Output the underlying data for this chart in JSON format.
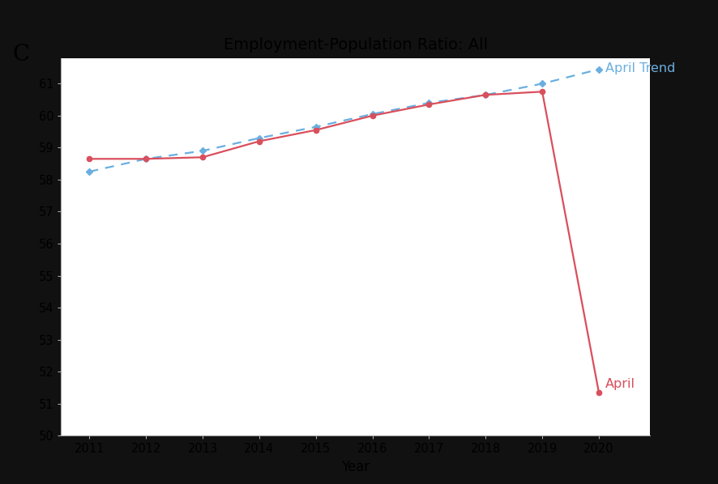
{
  "title": "Employment-Population Ratio: All",
  "panel_label": "C",
  "xlabel": "Year",
  "xlim": [
    2010.5,
    2020.9
  ],
  "ylim": [
    50,
    61.8
  ],
  "yticks": [
    50,
    51,
    52,
    53,
    54,
    55,
    56,
    57,
    58,
    59,
    60,
    61
  ],
  "xticks": [
    2011,
    2012,
    2013,
    2014,
    2015,
    2016,
    2017,
    2018,
    2019,
    2020
  ],
  "april_years": [
    2011,
    2012,
    2013,
    2014,
    2015,
    2016,
    2017,
    2018,
    2019,
    2020
  ],
  "april_values": [
    58.65,
    58.65,
    58.7,
    59.2,
    59.55,
    60.0,
    60.35,
    60.65,
    60.75,
    51.35
  ],
  "trend_years": [
    2011,
    2012,
    2013,
    2014,
    2015,
    2016,
    2017,
    2018,
    2019,
    2020
  ],
  "trend_values": [
    58.25,
    58.65,
    58.9,
    59.3,
    59.65,
    60.05,
    60.4,
    60.65,
    61.0,
    61.45
  ],
  "april_color": "#d94f5c",
  "trend_color": "#6aafe0",
  "background_color": "#ffffff",
  "fig_border_color": "#111111",
  "april_label": "April",
  "trend_label": "April Trend",
  "title_fontsize": 14,
  "panel_label_fontsize": 20,
  "axis_fontsize": 12,
  "tick_fontsize": 10.5,
  "legend_fontsize": 11.5
}
